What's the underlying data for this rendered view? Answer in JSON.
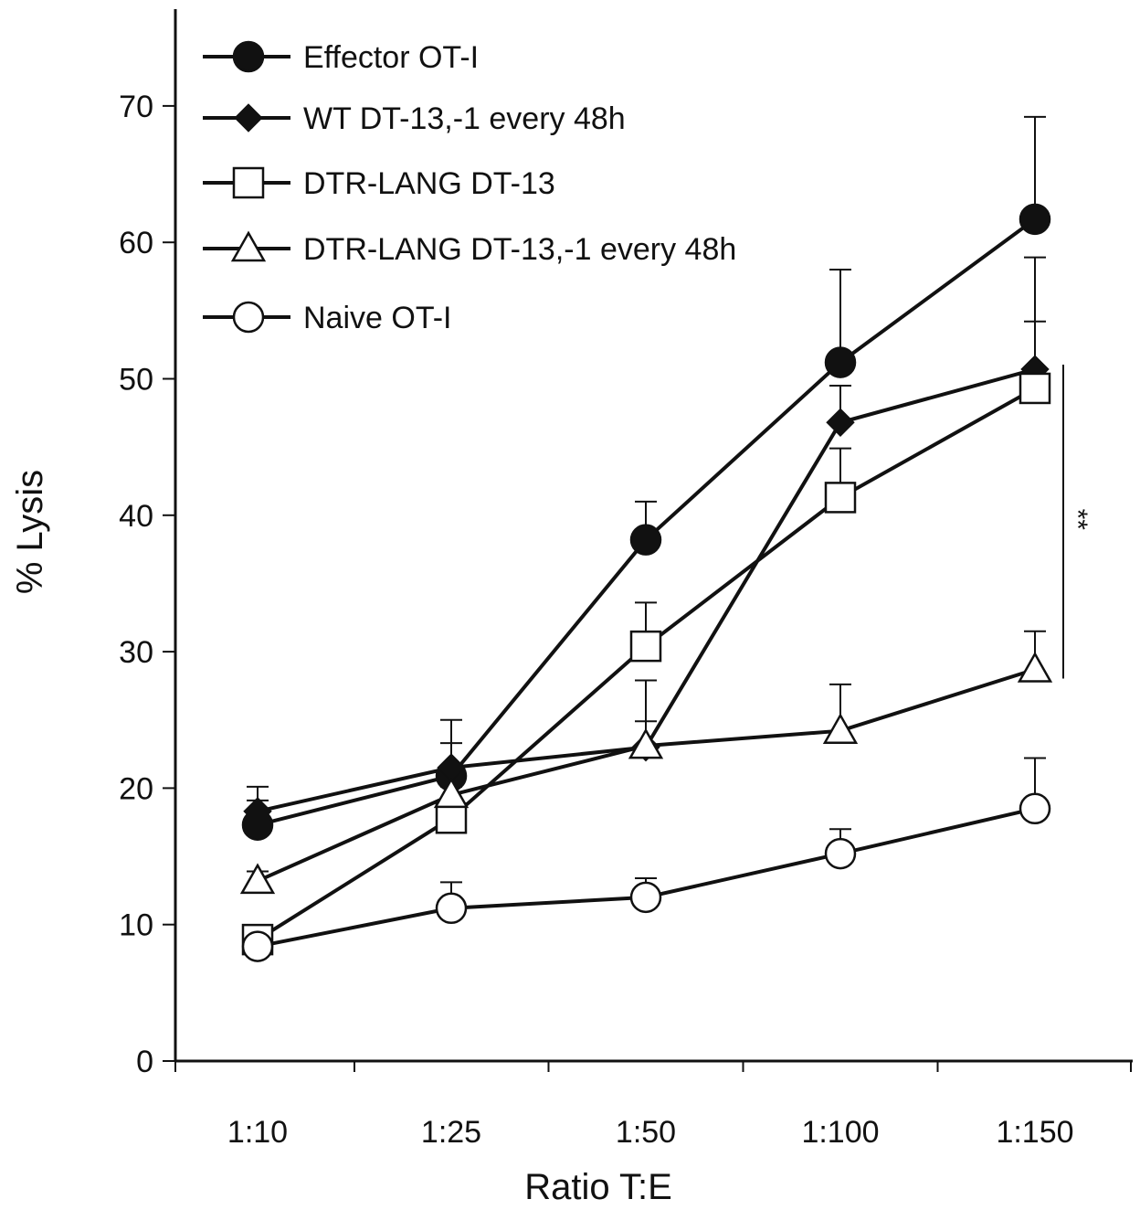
{
  "chart_data": {
    "type": "line",
    "title": "",
    "xlabel": "Ratio T:E",
    "ylabel": "% Lysis",
    "categories": [
      "1:10",
      "1:25",
      "1:50",
      "1:100",
      "1:150"
    ],
    "ylim": [
      0,
      70
    ],
    "yticks": [
      0,
      10,
      20,
      30,
      40,
      50,
      60,
      70
    ],
    "grid": false,
    "legend_position": "top-left",
    "series": [
      {
        "name": "Effector OT-I",
        "marker": "circle-filled",
        "values": [
          17.3,
          20.9,
          38.2,
          51.2,
          61.7
        ],
        "error": [
          1.8,
          4.1,
          2.8,
          6.8,
          7.5
        ]
      },
      {
        "name": "WT DT-13,-1 every 48h",
        "marker": "diamond-filled",
        "values": [
          18.3,
          21.5,
          23.0,
          46.8,
          50.7
        ],
        "error": [
          1.8,
          1.8,
          4.9,
          2.7,
          3.5
        ]
      },
      {
        "name": "DTR-LANG DT-13",
        "marker": "square-open",
        "values": [
          8.9,
          17.8,
          30.4,
          41.3,
          49.3
        ],
        "error": [
          0.8,
          0.7,
          3.2,
          3.6,
          9.6
        ]
      },
      {
        "name": "DTR-LANG DT-13,-1 every 48h",
        "marker": "triangle-open",
        "values": [
          13.2,
          19.5,
          23.1,
          24.2,
          28.7
        ],
        "error": [
          0.7,
          0.6,
          1.8,
          3.4,
          2.8
        ]
      },
      {
        "name": "Naive OT-I",
        "marker": "circle-open",
        "values": [
          8.4,
          11.2,
          12.0,
          15.2,
          18.5
        ],
        "error": [
          0.3,
          1.9,
          1.4,
          1.8,
          3.7
        ]
      }
    ],
    "annotations": [
      {
        "text": "**",
        "between_series": [
          "WT DT-13,-1 every 48h",
          "DTR-LANG DT-13,-1 every 48h"
        ],
        "at_category": "1:150"
      }
    ]
  }
}
